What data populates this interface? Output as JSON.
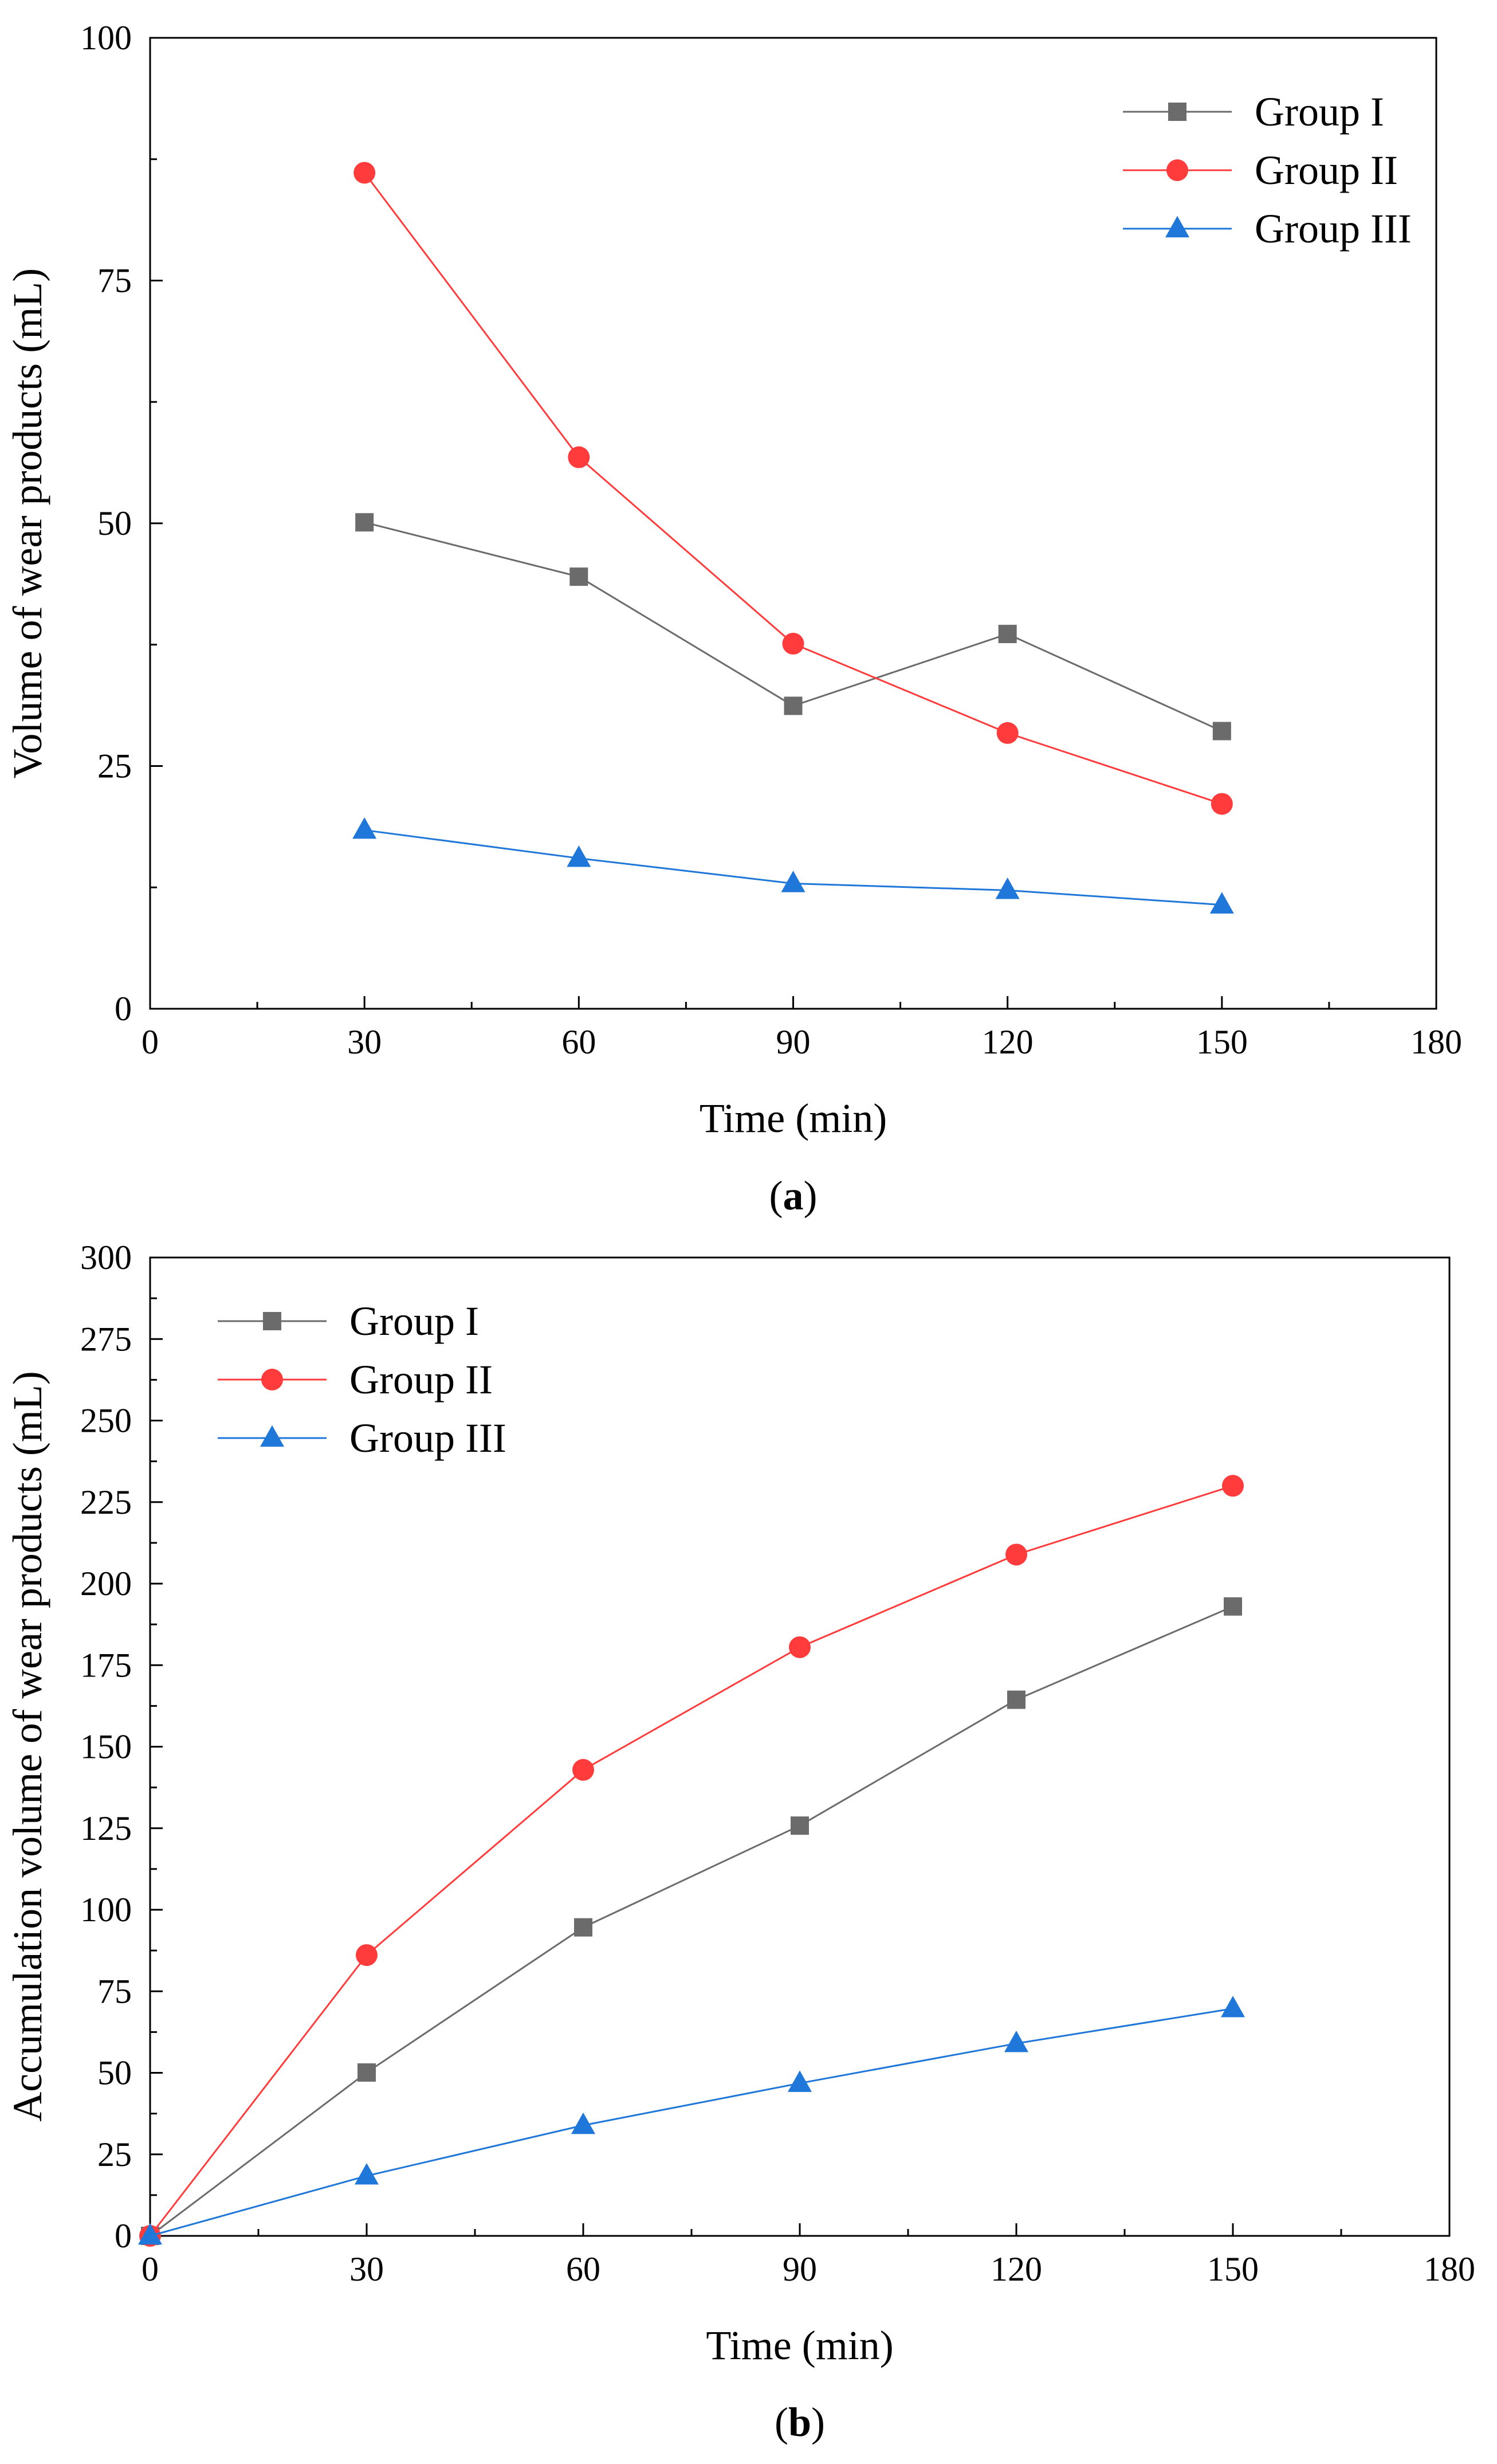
{
  "chart_data": [
    {
      "id": "a",
      "type": "line",
      "caption": "(a)",
      "xlabel": "Time (min)",
      "ylabel": "Volume of wear products (mL)",
      "xlim": [
        0,
        180
      ],
      "ylim": [
        0,
        100
      ],
      "xticks": [
        0,
        30,
        60,
        90,
        120,
        150,
        180
      ],
      "yticks": [
        0,
        25,
        50,
        75,
        100
      ],
      "grid": false,
      "legend_position": "top-right",
      "x": [
        30,
        60,
        90,
        120,
        150
      ],
      "series": [
        {
          "name": "Group I",
          "color": "#6b6b6b",
          "marker": "square",
          "values": [
            50.1,
            44.5,
            31.2,
            38.6,
            28.6
          ]
        },
        {
          "name": "Group II",
          "color": "#ff3b3b",
          "marker": "circle",
          "values": [
            86.1,
            56.8,
            37.6,
            28.4,
            21.1
          ]
        },
        {
          "name": "Group III",
          "color": "#1f77d9",
          "marker": "triangle",
          "values": [
            18.4,
            15.5,
            12.9,
            12.2,
            10.7
          ]
        }
      ]
    },
    {
      "id": "b",
      "type": "line",
      "caption": "(b)",
      "xlabel": "Time (min)",
      "ylabel": "Accumulation volume of wear products (mL)",
      "xlim": [
        0,
        180
      ],
      "ylim": [
        0,
        300
      ],
      "xticks": [
        0,
        30,
        60,
        90,
        120,
        150,
        180
      ],
      "yticks": [
        0,
        25,
        50,
        75,
        100,
        125,
        150,
        175,
        200,
        225,
        250,
        275,
        300
      ],
      "grid": false,
      "legend_position": "top-left",
      "x": [
        0,
        30,
        60,
        90,
        120,
        150
      ],
      "series": [
        {
          "name": "Group I",
          "color": "#6b6b6b",
          "marker": "square",
          "values": [
            0,
            50.1,
            94.6,
            125.8,
            164.4,
            193.0
          ]
        },
        {
          "name": "Group II",
          "color": "#ff3b3b",
          "marker": "circle",
          "values": [
            0,
            86.1,
            142.9,
            180.5,
            208.9,
            230.0
          ]
        },
        {
          "name": "Group III",
          "color": "#1f77d9",
          "marker": "triangle",
          "values": [
            0,
            18.4,
            33.9,
            46.8,
            59.0,
            69.7
          ]
        }
      ]
    }
  ]
}
